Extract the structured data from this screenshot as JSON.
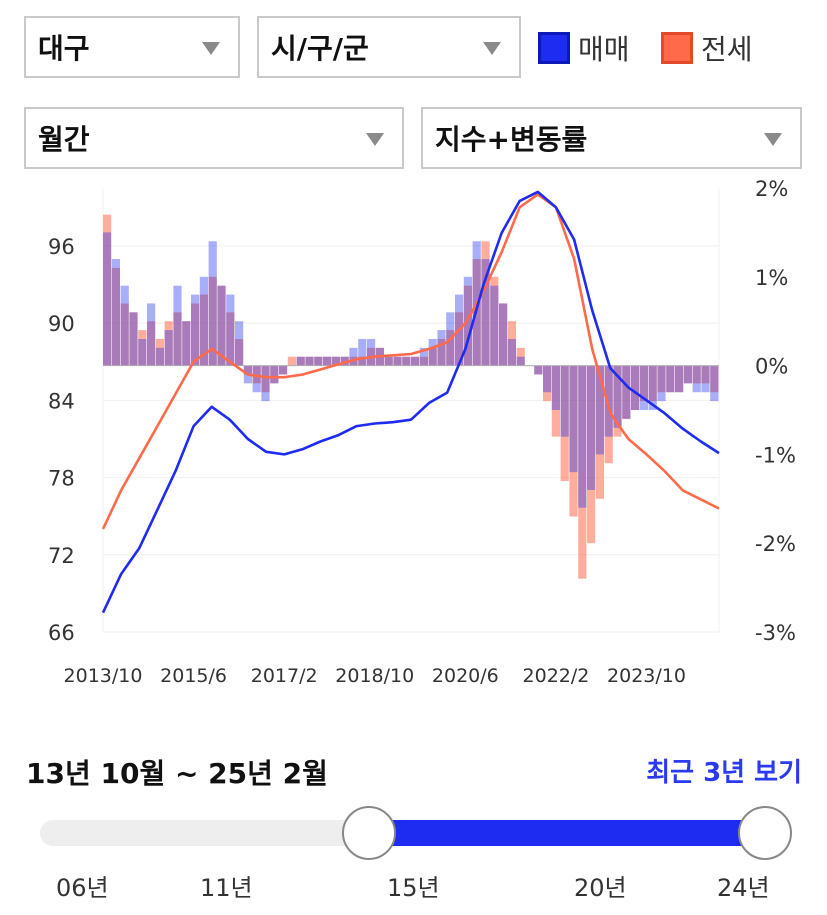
{
  "filters": {
    "region": "대구",
    "district": "시/구/군",
    "period": "월간",
    "mode": "지수+변동률"
  },
  "legend": {
    "sale": "매매",
    "jeonse": "전세"
  },
  "colors": {
    "sale": "#1e2bf0",
    "jeonse": "#ff6a4a"
  },
  "chart_data": {
    "type": "line+bar",
    "title": "",
    "x_tick_labels": [
      "2013/10",
      "2015/6",
      "2017/2",
      "2018/10",
      "2020/6",
      "2022/2",
      "2023/10"
    ],
    "x_range": [
      "2013/10",
      "2025/2"
    ],
    "y_left_ticks": [
      "96",
      "90",
      "84",
      "78",
      "72",
      "66"
    ],
    "y_left_range": [
      66,
      100.5
    ],
    "y_right_ticks": [
      "2%",
      "1%",
      "0%",
      "-1%",
      "-2%",
      "-3%"
    ],
    "y_right_range": [
      -3,
      2
    ],
    "grid": "horizontal",
    "series": [
      {
        "name": "매매",
        "kind": "index-line",
        "points": [
          [
            "2013/10",
            67.5
          ],
          [
            "2014/2",
            70.5
          ],
          [
            "2014/6",
            72.5
          ],
          [
            "2014/10",
            75.5
          ],
          [
            "2015/2",
            78.5
          ],
          [
            "2015/6",
            82.0
          ],
          [
            "2015/10",
            83.5
          ],
          [
            "2016/2",
            82.5
          ],
          [
            "2016/6",
            81.0
          ],
          [
            "2016/10",
            80.0
          ],
          [
            "2017/2",
            79.8
          ],
          [
            "2017/6",
            80.2
          ],
          [
            "2017/10",
            80.8
          ],
          [
            "2018/2",
            81.3
          ],
          [
            "2018/6",
            82.0
          ],
          [
            "2018/10",
            82.2
          ],
          [
            "2019/2",
            82.3
          ],
          [
            "2019/6",
            82.5
          ],
          [
            "2019/10",
            83.8
          ],
          [
            "2020/2",
            84.6
          ],
          [
            "2020/6",
            88.0
          ],
          [
            "2020/10",
            93.0
          ],
          [
            "2021/2",
            97.0
          ],
          [
            "2021/6",
            99.5
          ],
          [
            "2021/10",
            100.2
          ],
          [
            "2022/2",
            99.0
          ],
          [
            "2022/6",
            96.5
          ],
          [
            "2022/10",
            91.0
          ],
          [
            "2023/2",
            86.5
          ],
          [
            "2023/6",
            85.0
          ],
          [
            "2023/10",
            84.0
          ],
          [
            "2024/2",
            83.0
          ],
          [
            "2024/6",
            81.8
          ],
          [
            "2024/10",
            80.8
          ],
          [
            "2025/2",
            79.9
          ]
        ]
      },
      {
        "name": "전세",
        "kind": "index-line",
        "points": [
          [
            "2013/10",
            74.0
          ],
          [
            "2014/2",
            77.0
          ],
          [
            "2014/6",
            79.5
          ],
          [
            "2014/10",
            82.0
          ],
          [
            "2015/2",
            84.5
          ],
          [
            "2015/6",
            87.0
          ],
          [
            "2015/10",
            88.0
          ],
          [
            "2016/2",
            87.0
          ],
          [
            "2016/6",
            86.0
          ],
          [
            "2016/10",
            85.8
          ],
          [
            "2017/2",
            85.8
          ],
          [
            "2017/6",
            86.0
          ],
          [
            "2017/10",
            86.4
          ],
          [
            "2018/2",
            86.8
          ],
          [
            "2018/6",
            87.2
          ],
          [
            "2018/10",
            87.4
          ],
          [
            "2019/2",
            87.5
          ],
          [
            "2019/6",
            87.6
          ],
          [
            "2019/10",
            88.0
          ],
          [
            "2020/2",
            88.5
          ],
          [
            "2020/6",
            90.0
          ],
          [
            "2020/10",
            92.5
          ],
          [
            "2021/2",
            95.5
          ],
          [
            "2021/6",
            99.0
          ],
          [
            "2021/10",
            100.0
          ],
          [
            "2022/2",
            99.0
          ],
          [
            "2022/6",
            95.0
          ],
          [
            "2022/10",
            88.0
          ],
          [
            "2023/2",
            83.0
          ],
          [
            "2023/6",
            81.0
          ],
          [
            "2023/10",
            79.8
          ],
          [
            "2024/2",
            78.5
          ],
          [
            "2024/6",
            77.0
          ],
          [
            "2024/10",
            76.3
          ],
          [
            "2025/2",
            75.6
          ]
        ]
      },
      {
        "name": "매매 변동률",
        "kind": "change-bars",
        "values_percent": [
          1.5,
          1.2,
          0.9,
          0.6,
          0.3,
          0.7,
          0.2,
          0.4,
          0.9,
          0.5,
          0.8,
          1.0,
          1.4,
          0.9,
          0.8,
          0.5,
          -0.2,
          -0.3,
          -0.4,
          -0.2,
          -0.1,
          0.0,
          0.1,
          0.1,
          0.1,
          0.1,
          0.1,
          0.1,
          0.2,
          0.3,
          0.3,
          0.2,
          0.1,
          0.1,
          0.1,
          0.1,
          0.2,
          0.3,
          0.4,
          0.6,
          0.8,
          1.0,
          1.4,
          1.2,
          0.9,
          0.7,
          0.3,
          0.1,
          0.0,
          -0.1,
          -0.3,
          -0.5,
          -0.8,
          -1.2,
          -1.6,
          -1.4,
          -1.0,
          -0.8,
          -0.7,
          -0.6,
          -0.5,
          -0.5,
          -0.5,
          -0.4,
          -0.3,
          -0.3,
          -0.2,
          -0.3,
          -0.3,
          -0.4
        ]
      },
      {
        "name": "전세 변동률",
        "kind": "change-bars",
        "values_percent": [
          1.7,
          1.1,
          0.7,
          0.6,
          0.4,
          0.5,
          0.3,
          0.5,
          0.6,
          0.5,
          0.7,
          0.8,
          1.0,
          0.9,
          0.6,
          0.3,
          -0.1,
          -0.2,
          -0.3,
          -0.2,
          -0.1,
          0.1,
          0.1,
          0.1,
          0.1,
          0.1,
          0.1,
          0.1,
          0.1,
          0.1,
          0.2,
          0.2,
          0.1,
          0.1,
          0.1,
          0.1,
          0.1,
          0.2,
          0.3,
          0.4,
          0.6,
          0.9,
          1.2,
          1.4,
          1.0,
          0.7,
          0.5,
          0.2,
          0.0,
          -0.1,
          -0.4,
          -0.8,
          -1.3,
          -1.7,
          -2.4,
          -2.0,
          -1.5,
          -1.1,
          -0.8,
          -0.6,
          -0.5,
          -0.4,
          -0.4,
          -0.3,
          -0.3,
          -0.3,
          -0.2,
          -0.2,
          -0.2,
          -0.3
        ]
      }
    ]
  },
  "range": {
    "label": "13년 10월 ~ 25년 2월",
    "recent_link": "최근 3년 보기",
    "ticks": [
      "06년",
      "11년",
      "15년",
      "20년",
      "24년"
    ],
    "start": "13년 10월",
    "end": "25년 2월"
  }
}
